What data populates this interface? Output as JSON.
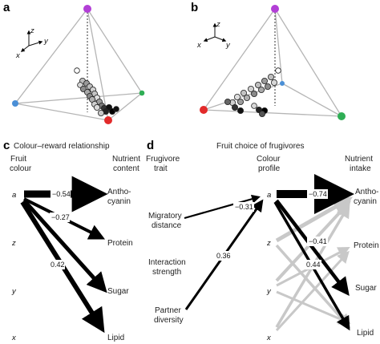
{
  "panels": {
    "a": {
      "label": "a"
    },
    "b": {
      "label": "b"
    },
    "c": {
      "label": "c",
      "title": "Colour–reward relationship",
      "left_header": [
        "Fruit",
        "colour"
      ],
      "right_header": [
        "Nutrient",
        "content"
      ],
      "left_nodes": [
        "a",
        "z",
        "y",
        "x"
      ],
      "right_nodes": [
        "Antho-",
        "cyanin",
        "Protein",
        "Sugar",
        "Lipid"
      ],
      "coefficients": [
        "−0.54",
        "−0.27",
        "0.42"
      ]
    },
    "d": {
      "label": "d",
      "title": "Fruit choice of frugivores",
      "left_header": [
        "Frugivore",
        "trait"
      ],
      "mid_header": [
        "Colour",
        "profile"
      ],
      "right_header": [
        "Nutrient",
        "intake"
      ],
      "traits": [
        "Migratory",
        "distance",
        "Interaction",
        "strength",
        "Partner",
        "diversity"
      ],
      "mid_nodes": [
        "a",
        "z",
        "y",
        "x"
      ],
      "right_nodes": [
        "Antho-",
        "cyanin",
        "Protein",
        "Sugar",
        "Lipid"
      ],
      "coefficients": [
        "−0.31",
        "0.36",
        "−0.74",
        "−0.41",
        "0.44"
      ]
    }
  },
  "axes_labels": {
    "z": "z",
    "y": "y",
    "x": "x"
  },
  "colors": {
    "vertex_top": "#b23fd6",
    "vertex_left_a": "#4a8fd6",
    "vertex_right_a": "#2fae55",
    "vertex_front": "#e22a2a",
    "vertex_right_b": "#2fae55",
    "edge": "#b5b5b5",
    "arrow_black": "#000000",
    "arrow_gray": "#c8c8c8"
  }
}
